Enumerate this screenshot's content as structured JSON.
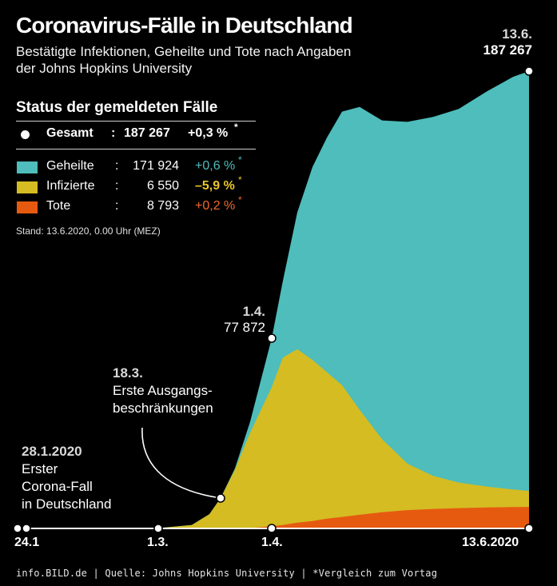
{
  "title": "Coronavirus-Fälle in Deutschland",
  "subtitle": "Bestätigte Infektionen, Geheilte und Tote nach Angaben der Johns Hopkins University",
  "status": {
    "title": "Status der gemeldeten Fälle",
    "total": {
      "label": "Gesamt",
      "sep": ":",
      "value": "187 267",
      "change": "+0,3 %",
      "star": "*"
    },
    "rows": [
      {
        "label": "Geheilte",
        "sep": ":",
        "value": "171 924",
        "change": "+0,6 %",
        "star": "*",
        "color": "#4ebdbb",
        "change_color": "#4ebdbb"
      },
      {
        "label": "Infizierte",
        "sep": ":",
        "value": "6 550",
        "change": "–5,9 %",
        "star": "*",
        "color": "#d4bc22",
        "change_color": "#e8c629"
      },
      {
        "label": "Tote",
        "sep": ":",
        "value": "8 793",
        "change": "+0,2 %",
        "star": "*",
        "color": "#e65a10",
        "change_color": "#f06a2a"
      }
    ],
    "stand": "Stand: 13.6.2020, 0.00 Uhr (MEZ)"
  },
  "annotations": {
    "end": {
      "date": "13.6.",
      "value": "187 267"
    },
    "april": {
      "date": "1.4.",
      "value": "77 872"
    },
    "lockdown": {
      "date": "18.3.",
      "line1": "Erste Ausgangs-",
      "line2": "beschränkungen"
    },
    "first_case": {
      "date": "28.1.2020",
      "line1": "Erster",
      "line2": "Corona-Fall",
      "line3": "in Deutschland"
    }
  },
  "footer": "info.BILD.de | Quelle: Johns Hopkins University | *Vergleich zum Vortag",
  "chart_data": {
    "type": "area",
    "stacked": true,
    "x_ticks": [
      "24.1",
      "1.3.",
      "1.4.",
      "13.6.2020"
    ],
    "x": [
      "24.1",
      "28.1.2020",
      "1.3.",
      "10.3.",
      "15.3.",
      "18.3.",
      "22.3.",
      "26.3.",
      "1.4.",
      "4.4.",
      "8.4.",
      "12.4.",
      "16.4.",
      "20.4.",
      "25.4.",
      "1.5.",
      "8.5.",
      "15.5.",
      "22.5.",
      "1.6.",
      "8.6.",
      "13.6.2020"
    ],
    "series": [
      {
        "name": "Tote",
        "color": "#e65a10",
        "values": [
          0,
          0,
          0,
          2,
          12,
          30,
          80,
          200,
          870,
          1450,
          2400,
          3000,
          4000,
          4700,
          5600,
          6600,
          7500,
          8000,
          8300,
          8600,
          8750,
          8793
        ]
      },
      {
        "name": "Infizierte",
        "color": "#d4bc22",
        "values": [
          0,
          0,
          130,
          1400,
          5800,
          12300,
          24000,
          39000,
          57000,
          68500,
          71000,
          66000,
          60000,
          54000,
          43000,
          30000,
          19000,
          13500,
          10500,
          8500,
          7200,
          6550
        ]
      },
      {
        "name": "Geheilte",
        "color": "#4ebdbb",
        "values": [
          0,
          0,
          20,
          25,
          60,
          110,
          500,
          4500,
          20000,
          31500,
          56000,
          79000,
          96000,
          112000,
          124000,
          130500,
          140000,
          147000,
          153000,
          162000,
          169000,
          171924
        ]
      }
    ],
    "markers": [
      {
        "x": "24.1",
        "total": 0
      },
      {
        "x": "28.1.2020",
        "total": 0
      },
      {
        "x": "1.3.",
        "total": 150
      },
      {
        "x": "18.3.",
        "total": 12400
      },
      {
        "x": "1.4.",
        "total": 77872
      },
      {
        "x": "13.6.2020",
        "total": 187267
      }
    ],
    "ylim": [
      0,
      187267
    ]
  }
}
